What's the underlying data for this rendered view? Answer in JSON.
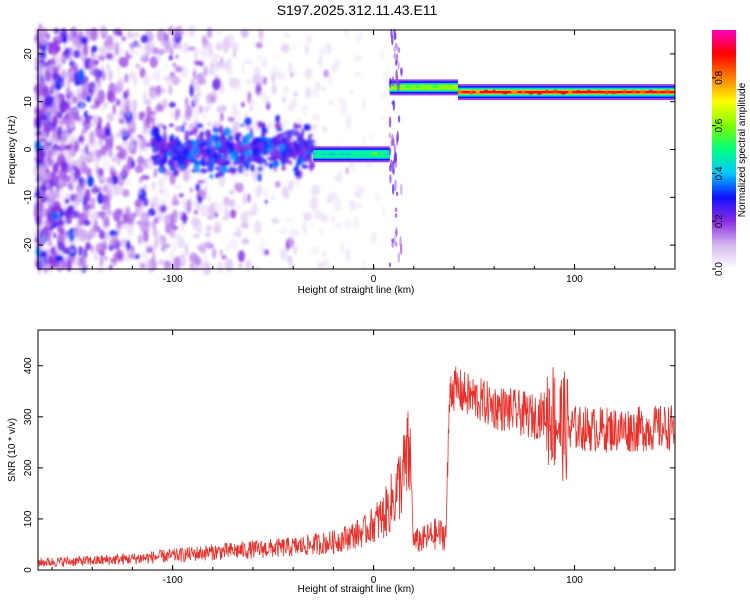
{
  "title": "S197.2025.312.11.43.E11",
  "colorbar": {
    "label": "Normalized spectral amplitude",
    "range": [
      0.0,
      1.0
    ],
    "ticks": [
      0.0,
      0.2,
      0.4,
      0.6,
      0.8
    ],
    "tick_labels": [
      "0.0",
      "0.2",
      "0.4",
      "0.6",
      "0.8"
    ],
    "colormap": [
      "#ffffff",
      "#d6b8f0",
      "#8a2be2",
      "#1010ff",
      "#00c8ff",
      "#00ff80",
      "#80ff00",
      "#ffff00",
      "#ff8000",
      "#ff0000",
      "#ff00c0"
    ]
  },
  "chart_data": [
    {
      "type": "heatmap",
      "xlabel": "Height of straight line (km)",
      "ylabel": "Frequency (Hz)",
      "xlim": [
        -167,
        150
      ],
      "ylim": [
        -25,
        25
      ],
      "xticks": [
        -100,
        0,
        100
      ],
      "xtick_labels": [
        "-100",
        "0",
        "100"
      ],
      "yticks": [
        -20,
        -10,
        0,
        10,
        20
      ],
      "ytick_labels": [
        "-20",
        "-10",
        "0",
        "10",
        "20"
      ],
      "ridge": [
        {
          "x_start": -110,
          "x_end": -30,
          "freq": 0,
          "amplitude": 0.3,
          "note": "scattered low-frequency energy"
        },
        {
          "x_start": -30,
          "x_end": 8,
          "freq": -1,
          "amplitude": 0.45
        },
        {
          "x_start": 8,
          "x_end": 42,
          "freq": 13,
          "amplitude": 0.6
        },
        {
          "x_start": 42,
          "x_end": 150,
          "freq": 12,
          "amplitude": 0.9
        }
      ]
    },
    {
      "type": "line",
      "xlabel": "Height of straight line (km)",
      "ylabel": "SNR (10 * v/v)",
      "xlim": [
        -167,
        150
      ],
      "ylim": [
        0,
        470
      ],
      "xticks": [
        -100,
        0,
        100
      ],
      "xtick_labels": [
        "-100",
        "0",
        "100"
      ],
      "yticks": [
        0,
        100,
        200,
        300,
        400
      ],
      "ytick_labels": [
        "0",
        "100",
        "200",
        "300",
        "400"
      ],
      "color": "#e8302a",
      "x": [
        -167,
        -140,
        -120,
        -100,
        -80,
        -60,
        -40,
        -20,
        -5,
        5,
        10,
        15,
        18,
        20,
        25,
        30,
        36,
        38,
        45,
        60,
        80,
        88,
        92,
        95,
        110,
        130,
        150
      ],
      "y": [
        15,
        18,
        22,
        28,
        35,
        40,
        45,
        55,
        75,
        105,
        140,
        190,
        230,
        55,
        60,
        70,
        70,
        360,
        345,
        320,
        300,
        310,
        290,
        280,
        275,
        275,
        280
      ]
    }
  ]
}
